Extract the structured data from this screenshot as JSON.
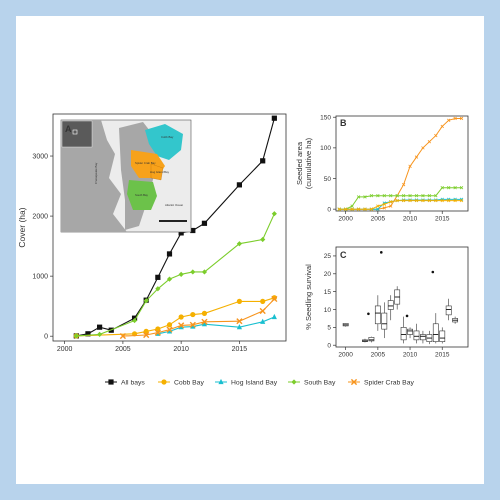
{
  "chart_data": [
    {
      "panel": "A",
      "type": "line",
      "ylabel": "Cover (ha)",
      "xlim": [
        1999,
        2019
      ],
      "ylim": [
        -80,
        3700
      ],
      "xticks": [
        2000,
        2005,
        2010,
        2015
      ],
      "yticks": [
        0,
        1000,
        2000,
        3000
      ],
      "grid": false,
      "legend_position": "bottom",
      "series": [
        {
          "name": "All bays",
          "color": "#111111",
          "marker": "square",
          "x": [
            2001,
            2002,
            2003,
            2004,
            2006,
            2007,
            2008,
            2009,
            2010,
            2011,
            2012,
            2015,
            2017,
            2018
          ],
          "y": [
            5,
            40,
            150,
            100,
            300,
            600,
            980,
            1370,
            1720,
            1760,
            1880,
            2520,
            2920,
            3630
          ]
        },
        {
          "name": "Cobb Bay",
          "color": "#f5b000",
          "marker": "circle",
          "x": [
            2001,
            2006,
            2007,
            2008,
            2009,
            2010,
            2011,
            2012,
            2015,
            2017,
            2018
          ],
          "y": [
            5,
            40,
            80,
            120,
            190,
            320,
            360,
            380,
            580,
            580,
            640
          ]
        },
        {
          "name": "Hog Island Bay",
          "color": "#19bfd0",
          "marker": "triangle",
          "x": [
            2008,
            2009,
            2010,
            2011,
            2012,
            2015,
            2017,
            2018
          ],
          "y": [
            40,
            80,
            150,
            160,
            200,
            150,
            240,
            320
          ]
        },
        {
          "name": "South Bay",
          "color": "#7ccd2c",
          "marker": "diamond",
          "x": [
            2001,
            2003,
            2006,
            2007,
            2008,
            2009,
            2010,
            2011,
            2012,
            2015,
            2017,
            2018
          ],
          "y": [
            5,
            30,
            260,
            590,
            790,
            950,
            1030,
            1070,
            1070,
            1540,
            1610,
            2040
          ]
        },
        {
          "name": "Spider Crab Bay",
          "color": "#f7941d",
          "marker": "x",
          "x": [
            2005,
            2007,
            2008,
            2009,
            2010,
            2011,
            2012,
            2015,
            2017,
            2018
          ],
          "y": [
            2,
            20,
            60,
            110,
            180,
            190,
            240,
            250,
            420,
            620
          ]
        }
      ],
      "inset_map": {
        "panel_label": "A",
        "region_labels": [
          "Cobb Bay",
          "Hog Island Bay",
          "South Bay",
          "Spider Crab Bay",
          "Chesapeake Bay",
          "Atlantic Ocean"
        ],
        "colors": {
          "land": "#a7a7a7",
          "water": "#ececec",
          "cobb": "#33c6cc",
          "spider": "#f7a21b",
          "south": "#6cc24a"
        }
      }
    },
    {
      "panel": "B",
      "type": "line",
      "ylabel": "Seeded area\n(cumulative ha)",
      "xlim": [
        1998.5,
        2019
      ],
      "ylim": [
        -3,
        152
      ],
      "xticks": [
        2000,
        2005,
        2010,
        2015
      ],
      "yticks": [
        0,
        50,
        100,
        150
      ],
      "series": [
        {
          "name": "Spider Crab Bay",
          "color": "#f7941d",
          "x": [
            1999,
            2000,
            2001,
            2002,
            2003,
            2004,
            2005,
            2006,
            2007,
            2008,
            2009,
            2010,
            2011,
            2012,
            2013,
            2014,
            2015,
            2016,
            2017,
            2018
          ],
          "y": [
            0,
            0,
            0,
            0,
            0,
            0,
            0,
            2,
            5,
            22,
            40,
            70,
            85,
            100,
            110,
            120,
            135,
            145,
            148,
            148
          ]
        },
        {
          "name": "South Bay",
          "color": "#7ccd2c",
          "x": [
            1999,
            2000,
            2001,
            2002,
            2003,
            2004,
            2005,
            2006,
            2007,
            2008,
            2009,
            2010,
            2011,
            2012,
            2013,
            2014,
            2015,
            2016,
            2017,
            2018
          ],
          "y": [
            0,
            0,
            5,
            20,
            20,
            22,
            22,
            22,
            22,
            22,
            22,
            22,
            22,
            22,
            22,
            22,
            35,
            35,
            35,
            35
          ]
        },
        {
          "name": "Hog Island Bay",
          "color": "#19bfd0",
          "x": [
            1999,
            2000,
            2001,
            2002,
            2003,
            2004,
            2005,
            2006,
            2007,
            2008,
            2009,
            2010,
            2011,
            2012,
            2013,
            2014,
            2015,
            2016,
            2017,
            2018
          ],
          "y": [
            0,
            0,
            0,
            0,
            0,
            0,
            0,
            10,
            12,
            14,
            15,
            15,
            15,
            15,
            15,
            15,
            16,
            16,
            16,
            16
          ]
        },
        {
          "name": "Cobb Bay",
          "color": "#f5b000",
          "x": [
            1999,
            2000,
            2001,
            2002,
            2003,
            2004,
            2005,
            2006,
            2007,
            2008,
            2009,
            2010,
            2011,
            2012,
            2013,
            2014,
            2015,
            2016,
            2017,
            2018
          ],
          "y": [
            0,
            0,
            0,
            0,
            0,
            0,
            5,
            8,
            12,
            14,
            14,
            14,
            14,
            14,
            14,
            14,
            14,
            14,
            14,
            14
          ]
        }
      ]
    },
    {
      "panel": "C",
      "type": "box",
      "ylabel": "% Seedling survival",
      "xlim": [
        1998.5,
        2019
      ],
      "ylim": [
        -0.5,
        27.5
      ],
      "xticks": [
        2000,
        2005,
        2010,
        2015
      ],
      "yticks": [
        0,
        5,
        10,
        15,
        20,
        25
      ],
      "boxes": [
        {
          "x": 2000,
          "min": 5.2,
          "q1": 5.4,
          "median": 5.7,
          "q3": 6.1,
          "max": 6.2
        },
        {
          "x": 2003,
          "min": 0.8,
          "q1": 1.0,
          "median": 1.2,
          "q3": 1.5,
          "max": 1.8
        },
        {
          "x": 2004,
          "min": 0.8,
          "q1": 1.2,
          "median": 1.5,
          "q3": 2.2,
          "max": 2.4,
          "outliers": [
            8.8
          ]
        },
        {
          "x": 2005,
          "min": 4.0,
          "q1": 6.0,
          "median": 9.0,
          "q3": 11.0,
          "max": 14.0
        },
        {
          "x": 2006,
          "min": 2.0,
          "q1": 4.5,
          "median": 6.0,
          "q3": 9.0,
          "max": 12.0,
          "outliers": [
            26.0
          ]
        },
        {
          "x": 2007,
          "min": 7.0,
          "q1": 10.0,
          "median": 11.0,
          "q3": 12.5,
          "max": 14.0
        },
        {
          "x": 2008,
          "min": 10.0,
          "q1": 11.5,
          "median": 13.5,
          "q3": 15.5,
          "max": 16.5
        },
        {
          "x": 2009,
          "min": 0.5,
          "q1": 1.5,
          "median": 3.0,
          "q3": 5.0,
          "max": 8.0
        },
        {
          "x": 2010,
          "min": 2.0,
          "q1": 3.0,
          "median": 4.0,
          "q3": 4.5,
          "max": 5.0,
          "outliers": [
            8.2
          ]
        },
        {
          "x": 2011,
          "min": 0.5,
          "q1": 1.5,
          "median": 2.5,
          "q3": 4.0,
          "max": 6.0
        },
        {
          "x": 2012,
          "min": 0.5,
          "q1": 1.5,
          "median": 2.5,
          "q3": 3.0,
          "max": 4.0
        },
        {
          "x": 2013,
          "min": 0.3,
          "q1": 1.0,
          "median": 2.0,
          "q3": 3.0,
          "max": 4.0
        },
        {
          "x": 2014,
          "min": 0.5,
          "q1": 1.0,
          "median": 3.0,
          "q3": 6.0,
          "max": 9.0,
          "outliers": [
            20.5
          ]
        },
        {
          "x": 2015,
          "min": 0.5,
          "q1": 1.0,
          "median": 2.0,
          "q3": 4.0,
          "max": 5.0
        },
        {
          "x": 2016,
          "min": 7.0,
          "q1": 8.5,
          "median": 10.0,
          "q3": 11.0,
          "max": 13.0
        },
        {
          "x": 2017,
          "min": 6.0,
          "q1": 6.5,
          "median": 7.0,
          "q3": 7.5,
          "max": 8.0
        }
      ]
    }
  ],
  "legend": [
    {
      "label": "All bays",
      "color": "#111111",
      "marker": "square"
    },
    {
      "label": "Cobb Bay",
      "color": "#f5b000",
      "marker": "circle"
    },
    {
      "label": "Hog Island Bay",
      "color": "#19bfd0",
      "marker": "triangle"
    },
    {
      "label": "South Bay",
      "color": "#7ccd2c",
      "marker": "diamond"
    },
    {
      "label": "Spider Crab Bay",
      "color": "#f7941d",
      "marker": "x"
    }
  ],
  "colors": {
    "background": "#b8d3ec",
    "card": "#ffffff",
    "axis": "#333333"
  }
}
